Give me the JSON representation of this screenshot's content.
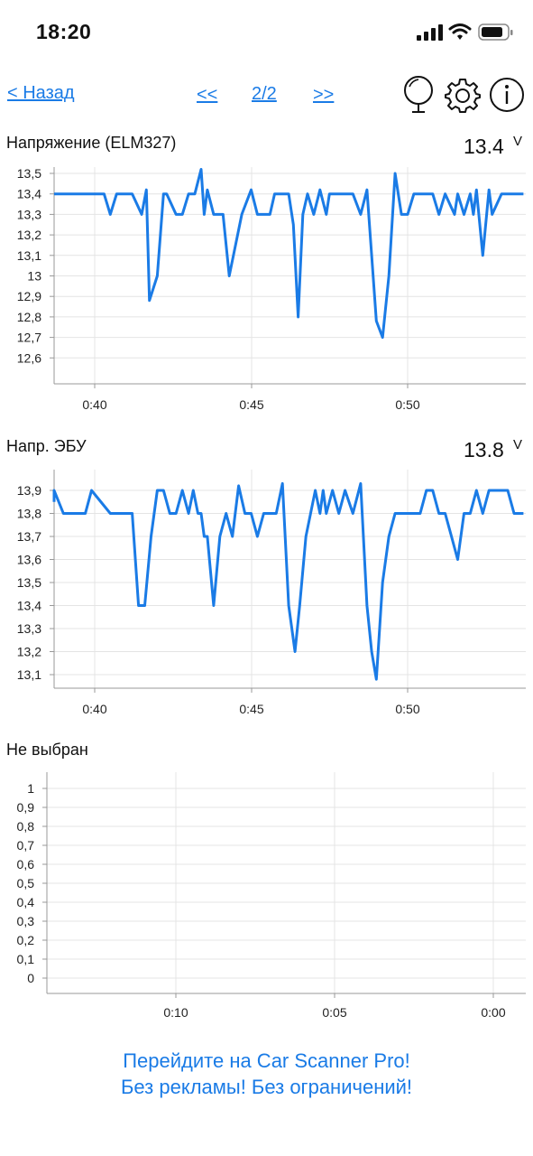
{
  "status_bar": {
    "time": "18:20"
  },
  "nav": {
    "back": "< Назад",
    "prev": "<<",
    "page": "2/2",
    "next": ">>"
  },
  "charts": [
    {
      "title": "Напряжение (ELM327)",
      "value": "13.4",
      "unit": "V",
      "line_color": "#1a7be6",
      "y_ticks": [
        "13,5",
        "13,4",
        "13,3",
        "13,2",
        "13,1",
        "13",
        "12,9",
        "12,8",
        "12,7",
        "12,6"
      ],
      "x_ticks": [
        "0:40",
        "0:45",
        "0:50"
      ]
    },
    {
      "title": "Напр. ЭБУ",
      "value": "13.8",
      "unit": "V",
      "line_color": "#1a7be6",
      "y_ticks": [
        "13,9",
        "13,8",
        "13,7",
        "13,6",
        "13,5",
        "13,4",
        "13,3",
        "13,2",
        "13,1"
      ],
      "x_ticks": [
        "0:40",
        "0:45",
        "0:50"
      ]
    },
    {
      "title": "Не выбран",
      "y_ticks": [
        "1",
        "0,9",
        "0,8",
        "0,7",
        "0,6",
        "0,5",
        "0,4",
        "0,3",
        "0,2",
        "0,1",
        "0"
      ],
      "x_ticks": [
        "0:10",
        "0:05",
        "0:00"
      ]
    }
  ],
  "chart_data": [
    {
      "type": "line",
      "title": "Напряжение (ELM327)",
      "ylabel": "V",
      "ylim": [
        12.55,
        13.55
      ],
      "xlim": [
        38.6,
        53.7
      ],
      "x_ticks": [
        "0:40",
        "0:45",
        "0:50"
      ],
      "series": [
        {
          "x": [
            38.6,
            39.2,
            40.3,
            40.5,
            40.7,
            41.2,
            41.5,
            41.65,
            41.75,
            42.0,
            42.2,
            42.3,
            42.6,
            42.8,
            43.0,
            43.2,
            43.4,
            43.5,
            43.6,
            43.8,
            44.1,
            44.3,
            44.7,
            45.0,
            45.2,
            45.4,
            45.6,
            45.75,
            45.95,
            46.2,
            46.35,
            46.5,
            46.65,
            46.8,
            47.0,
            47.2,
            47.4,
            47.5,
            47.7,
            47.8,
            48.0,
            48.25,
            48.5,
            48.7,
            49.0,
            49.2,
            49.4,
            49.6,
            49.8,
            50.0,
            50.2,
            50.4,
            50.8,
            51.0,
            51.2,
            51.5,
            51.6,
            51.8,
            52.0,
            52.1,
            52.2,
            52.4,
            52.6,
            52.7,
            53.0,
            53.2,
            53.4,
            53.6,
            53.7
          ],
          "y": [
            13.4,
            13.4,
            13.4,
            13.3,
            13.4,
            13.4,
            13.3,
            13.42,
            12.88,
            13.0,
            13.4,
            13.4,
            13.3,
            13.3,
            13.4,
            13.4,
            13.52,
            13.3,
            13.42,
            13.3,
            13.3,
            13.0,
            13.3,
            13.42,
            13.3,
            13.3,
            13.3,
            13.4,
            13.4,
            13.4,
            13.25,
            12.8,
            13.3,
            13.4,
            13.3,
            13.42,
            13.3,
            13.4,
            13.4,
            13.4,
            13.4,
            13.4,
            13.3,
            13.42,
            12.78,
            12.7,
            13.0,
            13.5,
            13.3,
            13.3,
            13.4,
            13.4,
            13.4,
            13.3,
            13.4,
            13.3,
            13.4,
            13.3,
            13.4,
            13.3,
            13.42,
            13.1,
            13.42,
            13.3,
            13.4,
            13.4,
            13.4,
            13.4,
            13.4
          ],
          "color": "#1a7be6"
        }
      ]
    },
    {
      "type": "line",
      "title": "Напр. ЭБУ",
      "ylabel": "V",
      "ylim": [
        13.05,
        13.95
      ],
      "xlim": [
        38.6,
        53.7
      ],
      "x_ticks": [
        "0:40",
        "0:45",
        "0:50"
      ],
      "series": [
        {
          "x": [
            38.6,
            38.7,
            39.0,
            39.5,
            39.7,
            39.9,
            40.5,
            41.0,
            41.2,
            41.4,
            41.6,
            41.8,
            42.0,
            42.2,
            42.4,
            42.6,
            42.8,
            43.0,
            43.15,
            43.3,
            43.4,
            43.5,
            43.6,
            43.8,
            44.0,
            44.2,
            44.4,
            44.6,
            44.8,
            45.0,
            45.2,
            45.4,
            45.6,
            45.8,
            46.0,
            46.2,
            46.4,
            46.55,
            46.75,
            46.9,
            47.05,
            47.2,
            47.3,
            47.4,
            47.6,
            47.8,
            48.0,
            48.25,
            48.5,
            48.7,
            48.85,
            49.0,
            49.2,
            49.4,
            49.6,
            50.0,
            50.2,
            50.4,
            50.6,
            50.8,
            51.0,
            51.2,
            51.4,
            51.6,
            51.8,
            52.0,
            52.2,
            52.4,
            52.6,
            52.8,
            53.0,
            53.2,
            53.4,
            53.6,
            53.7
          ],
          "y": [
            13.85,
            13.9,
            13.8,
            13.8,
            13.8,
            13.9,
            13.8,
            13.8,
            13.8,
            13.4,
            13.4,
            13.7,
            13.9,
            13.9,
            13.8,
            13.8,
            13.9,
            13.8,
            13.9,
            13.8,
            13.8,
            13.7,
            13.7,
            13.4,
            13.7,
            13.8,
            13.7,
            13.92,
            13.8,
            13.8,
            13.7,
            13.8,
            13.8,
            13.8,
            13.93,
            13.4,
            13.2,
            13.4,
            13.7,
            13.8,
            13.9,
            13.8,
            13.9,
            13.8,
            13.9,
            13.8,
            13.9,
            13.8,
            13.93,
            13.4,
            13.2,
            13.08,
            13.5,
            13.7,
            13.8,
            13.8,
            13.8,
            13.8,
            13.9,
            13.9,
            13.8,
            13.8,
            13.7,
            13.6,
            13.8,
            13.8,
            13.9,
            13.8,
            13.9,
            13.9,
            13.9,
            13.9,
            13.8,
            13.8,
            13.8
          ],
          "color": "#1a7be6"
        }
      ]
    },
    {
      "type": "line",
      "title": "Не выбран",
      "ylim": [
        0,
        1
      ],
      "x_ticks": [
        "0:10",
        "0:05",
        "0:00"
      ],
      "series": []
    }
  ]
}
